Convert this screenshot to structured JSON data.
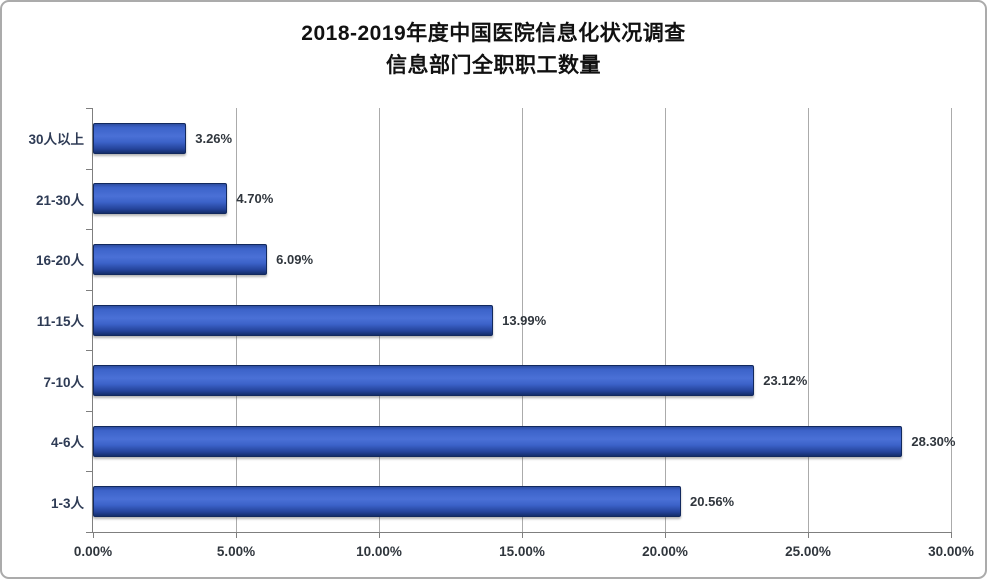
{
  "figure": {
    "title_line1": "2018-2019年度中国医院信息化状况调查",
    "title_line2": "信息部门全职职工数量"
  },
  "chart_data": {
    "type": "bar",
    "orientation": "horizontal",
    "title": "2018-2019年度中国医院信息化状况调查 信息部门全职职工数量",
    "categories": [
      "30人以上",
      "21-30人",
      "16-20人",
      "11-15人",
      "7-10人",
      "4-6人",
      "1-3人"
    ],
    "values": [
      3.26,
      4.7,
      6.09,
      13.99,
      23.12,
      28.3,
      20.56
    ],
    "data_labels": [
      "3.26%",
      "4.70%",
      "6.09%",
      "13.99%",
      "23.12%",
      "28.30%",
      "20.56%"
    ],
    "x_axis": {
      "min": 0,
      "max": 30,
      "tick_step": 5,
      "ticks": [
        0,
        5,
        10,
        15,
        20,
        25,
        30
      ],
      "tick_labels": [
        "0.00%",
        "5.00%",
        "10.00%",
        "15.00%",
        "20.00%",
        "25.00%",
        "30.00%"
      ]
    },
    "grid": "vertical",
    "legend": "none",
    "colors": {
      "bar_main": "#3c63c9",
      "bar_light": "#4a70d6",
      "bar_dark": "#24439a",
      "bar_darkest": "#142e6b",
      "bar_edge_top": "#2d4da0",
      "bar_border": "#12295e",
      "grid": "#ababab",
      "axis": "#7f7f7f",
      "title_text": "#111111",
      "label_text": "#30363d",
      "category_text": "#2e3b55"
    }
  }
}
